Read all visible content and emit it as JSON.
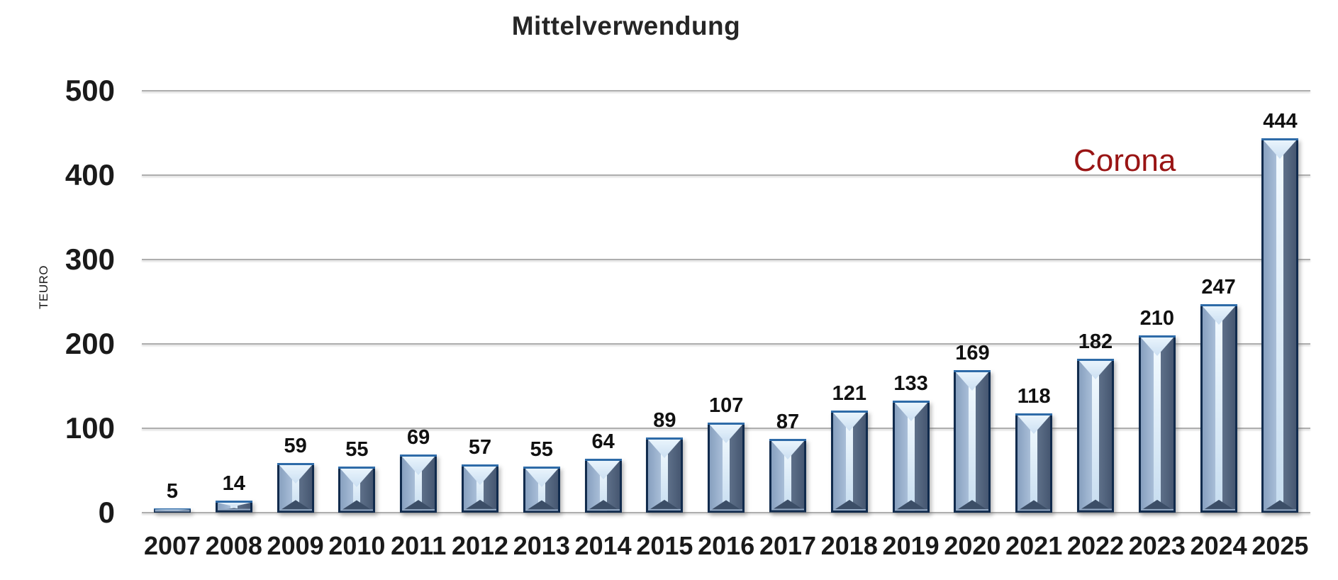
{
  "chart_data": {
    "type": "bar",
    "title": "Mittelverwendung",
    "ylabel": "TEURO",
    "xlabel": "",
    "categories": [
      "2007",
      "2008",
      "2009",
      "2010",
      "2011",
      "2012",
      "2013",
      "2014",
      "2015",
      "2016",
      "2017",
      "2018",
      "2019",
      "2020",
      "2021",
      "2022",
      "2023",
      "2024",
      "2025"
    ],
    "values": [
      5,
      14,
      59,
      55,
      69,
      57,
      55,
      64,
      89,
      107,
      87,
      121,
      133,
      169,
      118,
      182,
      210,
      247,
      444
    ],
    "ylim": [
      0,
      500
    ],
    "yticks": [
      0,
      100,
      200,
      300,
      400,
      500
    ],
    "grid": true,
    "legend": false,
    "data_labels": true,
    "annotation": {
      "text": "Corona",
      "near_category": "2022",
      "at_value": 400
    }
  },
  "colors": {
    "background": "#ffffff",
    "title_text": "#262626",
    "axis_text": "#1a1a1a",
    "gridline": "#aeaeae",
    "annotation": "#991414",
    "bar_border": "#112b4d",
    "bar_top_edge": "#2e6ba8",
    "bar_left_light": "#87a0bf",
    "bar_left_lighter": "#a9bed8",
    "bar_stripe_light": "#f4fbff",
    "bar_stripe_dark": "#c7ddf0",
    "bar_right_light": "#5e7089",
    "bar_right_dark": "#465771",
    "bar_top_bevel_light": "#e9f4fc",
    "bar_top_bevel_dark": "#cbdff2",
    "bar_bottom_bevel": "#3c4e67",
    "bar_bottom_edge": "#93a9c4"
  }
}
